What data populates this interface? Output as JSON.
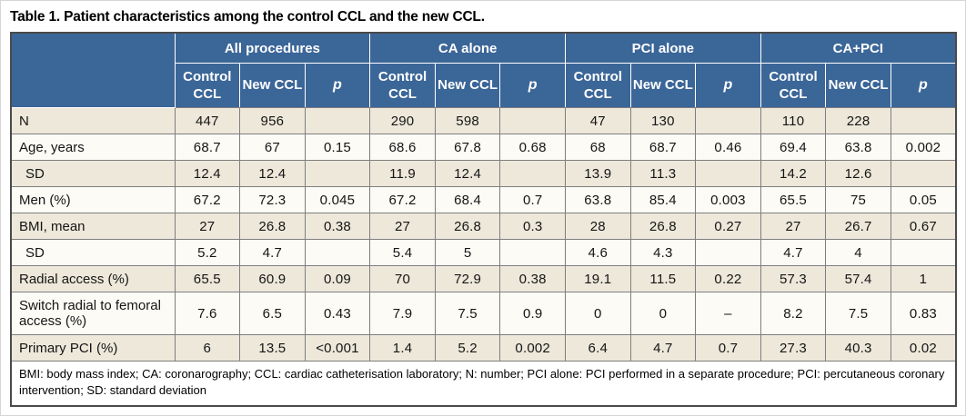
{
  "title": "Table 1. Patient characteristics among the control CCL and the new CCL.",
  "colors": {
    "header_bg": "#3B6698",
    "header_text": "#FFFFFF",
    "row_odd_bg": "#EDE8DA",
    "row_even_bg": "#FCFBF5",
    "grid_line": "#7E7E7E",
    "outer_border": "#4A4A4A"
  },
  "table": {
    "groups": [
      "All procedures",
      "CA alone",
      "PCI alone",
      "CA+PCI"
    ],
    "subheaders": [
      "Control CCL",
      "New CCL",
      "p"
    ],
    "rows": [
      {
        "label": "N",
        "indent": false,
        "values": [
          "447",
          "956",
          "",
          "290",
          "598",
          "",
          "47",
          "130",
          "",
          "110",
          "228",
          ""
        ]
      },
      {
        "label": "Age, years",
        "indent": false,
        "values": [
          "68.7",
          "67",
          "0.15",
          "68.6",
          "67.8",
          "0.68",
          "68",
          "68.7",
          "0.46",
          "69.4",
          "63.8",
          "0.002"
        ]
      },
      {
        "label": "SD",
        "indent": true,
        "values": [
          "12.4",
          "12.4",
          "",
          "11.9",
          "12.4",
          "",
          "13.9",
          "11.3",
          "",
          "14.2",
          "12.6",
          ""
        ]
      },
      {
        "label": "Men (%)",
        "indent": false,
        "values": [
          "67.2",
          "72.3",
          "0.045",
          "67.2",
          "68.4",
          "0.7",
          "63.8",
          "85.4",
          "0.003",
          "65.5",
          "75",
          "0.05"
        ]
      },
      {
        "label": "BMI, mean",
        "indent": false,
        "values": [
          "27",
          "26.8",
          "0.38",
          "27",
          "26.8",
          "0.3",
          "28",
          "26.8",
          "0.27",
          "27",
          "26.7",
          "0.67"
        ]
      },
      {
        "label": "SD",
        "indent": true,
        "values": [
          "5.2",
          "4.7",
          "",
          "5.4",
          "5",
          "",
          "4.6",
          "4.3",
          "",
          "4.7",
          "4",
          ""
        ]
      },
      {
        "label": "Radial access (%)",
        "indent": false,
        "values": [
          "65.5",
          "60.9",
          "0.09",
          "70",
          "72.9",
          "0.38",
          "19.1",
          "11.5",
          "0.22",
          "57.3",
          "57.4",
          "1"
        ]
      },
      {
        "label": "Switch radial to femoral access (%)",
        "indent": false,
        "tall": true,
        "values": [
          "7.6",
          "6.5",
          "0.43",
          "7.9",
          "7.5",
          "0.9",
          "0",
          "0",
          "–",
          "8.2",
          "7.5",
          "0.83"
        ]
      },
      {
        "label": "Primary PCI (%)",
        "indent": false,
        "values": [
          "6",
          "13.5",
          "<0.001",
          "1.4",
          "5.2",
          "0.002",
          "6.4",
          "4.7",
          "0.7",
          "27.3",
          "40.3",
          "0.02"
        ]
      }
    ],
    "footnote": "BMI: body mass index; CA: coronarography; CCL: cardiac catheterisation laboratory; N: number; PCI alone: PCI performed in a separate procedure; PCI: percutaneous coronary intervention; SD: standard deviation"
  }
}
